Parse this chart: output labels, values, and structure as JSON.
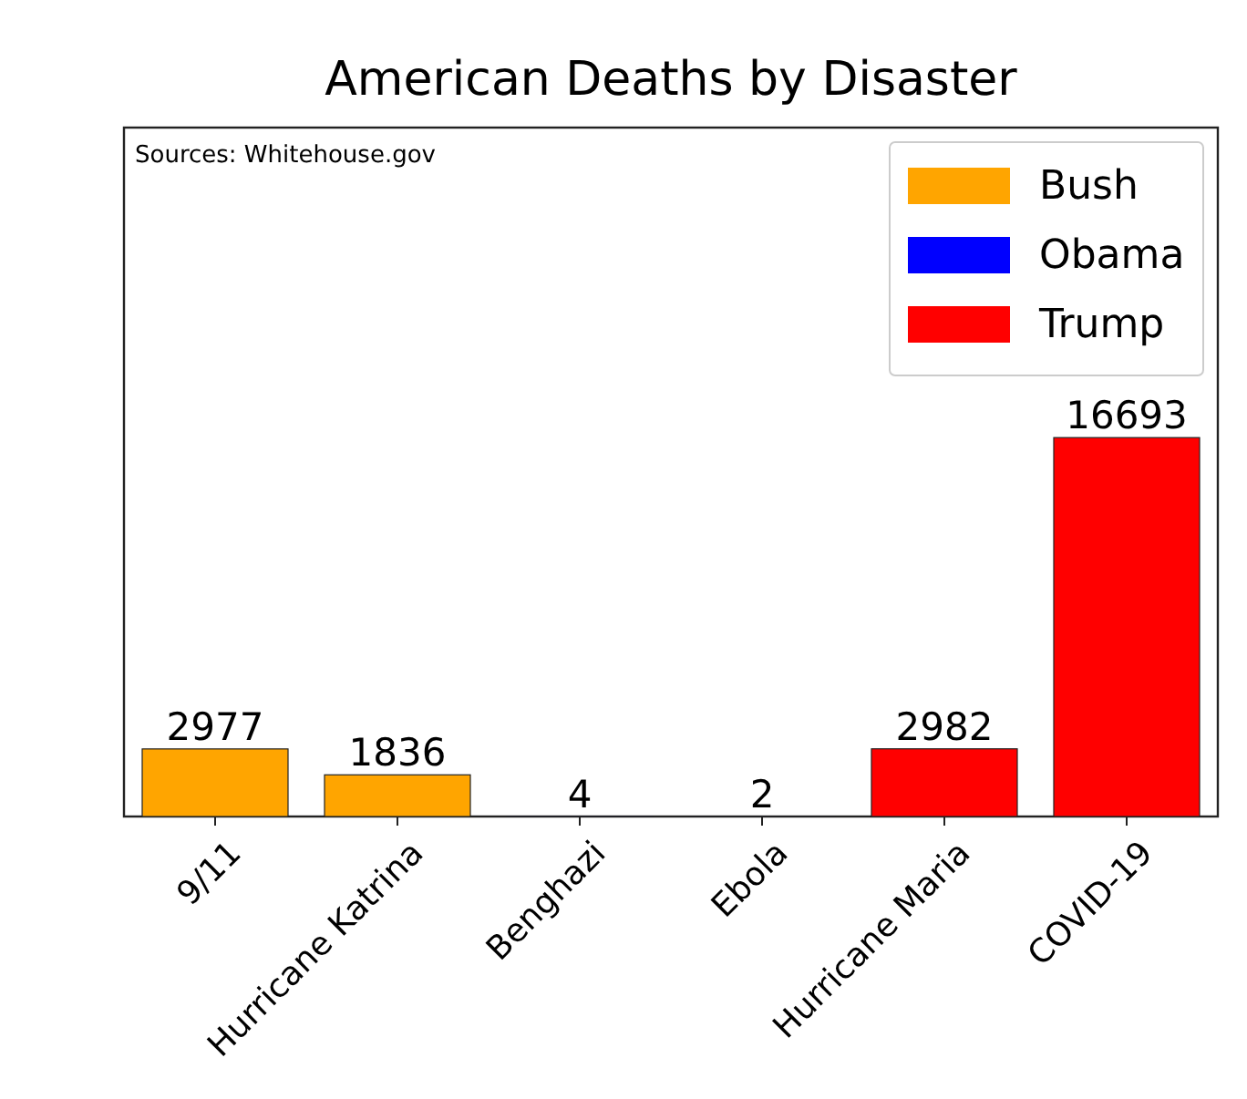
{
  "chart_data": {
    "type": "bar",
    "title": "American Deaths by Disaster",
    "annotations": [
      "Sources: Whitehouse.gov"
    ],
    "categories": [
      "9/11",
      "Hurricane Katrina",
      "Benghazi",
      "Ebola",
      "Hurricane Maria",
      "COVID-19"
    ],
    "data_labels": true,
    "stacked": true,
    "legend": "top right",
    "series": [
      {
        "name": "Bush",
        "color": "#ffa500",
        "values": [
          2977,
          1836,
          null,
          null,
          null,
          null
        ]
      },
      {
        "name": "Obama",
        "color": "#0000ff",
        "values": [
          null,
          null,
          4,
          2,
          null,
          null
        ]
      },
      {
        "name": "Trump",
        "color": "#ff0000",
        "values": [
          null,
          null,
          null,
          null,
          2982,
          16693
        ]
      }
    ]
  }
}
